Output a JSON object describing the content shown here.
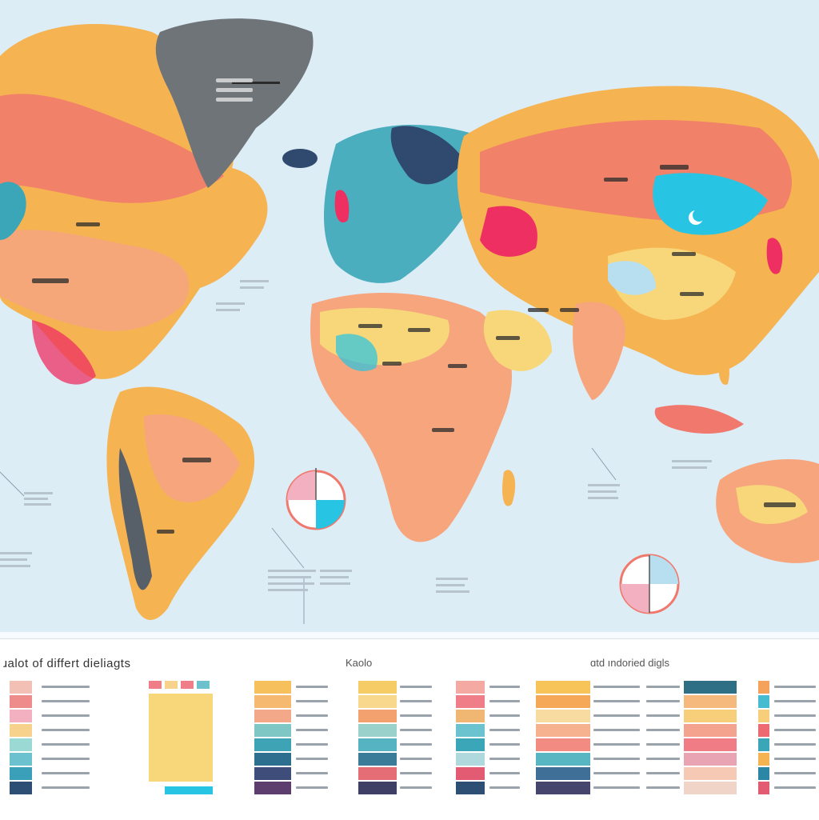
{
  "map": {
    "colors": {
      "ocean": "#dcedf6",
      "greenland": "#6f7479",
      "coral": "#f0786c",
      "orange": "#f5b352",
      "yellow": "#f7d77a",
      "teal": "#3aa6b8",
      "cyan": "#27c5e3",
      "magenta": "#ee2f62",
      "navy": "#2f4a6e",
      "peach": "#f6a57d"
    }
  },
  "legend": {
    "title_left": "ɹalot of differt dieliagts",
    "title_mid": "Kaolo",
    "title_right": "ɑtd ındoried digls",
    "palettes": {
      "p1": [
        "#f3c0b5",
        "#ee8b8b",
        "#f3b0c0",
        "#f6d28d",
        "#9ad9d4",
        "#6cc1cf",
        "#3a9fb8",
        "#2d4f73"
      ],
      "p2": [
        "#f6c15c",
        "#f5b970",
        "#f3a88a",
        "#7fc7c4",
        "#3ea3b4",
        "#2c6f8e",
        "#3f4d7a",
        "#5c3d6e"
      ],
      "p3": [
        "#f6cc66",
        "#f7d88c",
        "#f3a26f",
        "#9ad2cb",
        "#56b3c1",
        "#3b7d99",
        "#e56d76",
        "#3f3f66"
      ],
      "p4": [
        "#f4a9a3",
        "#f07e88",
        "#f0b773",
        "#6bc3cf",
        "#3aa6b8",
        "#b0d9de",
        "#e35b73",
        "#2d4f73"
      ],
      "p5": [
        "#f7c45a",
        "#f5a958",
        "#f7dba1",
        "#f6b18f",
        "#f28b82",
        "#58b6c2",
        "#3f6f96",
        "#46456e"
      ],
      "p6": [
        "#2e6f86",
        "#f5b87d",
        "#f7cf7b",
        "#f3a38e",
        "#f07c86",
        "#e9a4b4",
        "#f6c9b4",
        "#f0d4c8"
      ],
      "p7": [
        "#f5a35b",
        "#47bcd0",
        "#f7cf7b",
        "#ee6a73",
        "#3aa6b8",
        "#f5b352",
        "#2c86a6",
        "#e35b73"
      ]
    }
  }
}
